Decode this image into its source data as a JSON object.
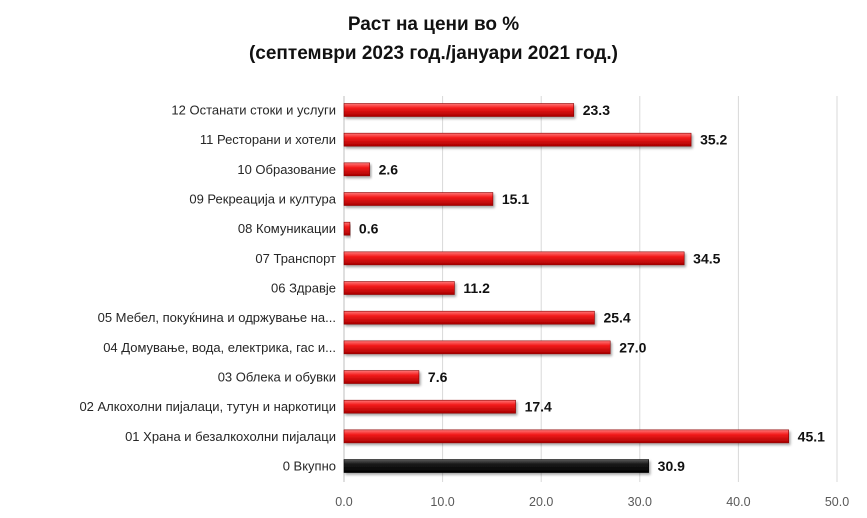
{
  "chart_data": {
    "type": "bar",
    "orientation": "horizontal",
    "title_lines": [
      "Раст на цени во %",
      "(септември 2023 год./јануари 2021 год.)"
    ],
    "categories": [
      "12 Останати стоки и услуги",
      "11 Ресторани и хотели",
      "10 Образование",
      "09 Рекреација и култура",
      "08 Комуникации",
      "07 Транспорт",
      "06 Здравје",
      "05 Мебел, покуќнина и одржување на...",
      "04 Домување, вода, електрика, гас и...",
      "03 Облека и обувки",
      "02 Алкохолни пијалаци, тутун и наркотици",
      "01 Храна и безалкохолни пијалаци",
      "0 Вкупно"
    ],
    "values": [
      23.3,
      35.2,
      2.6,
      15.1,
      0.6,
      34.5,
      11.2,
      25.4,
      27.0,
      7.6,
      17.4,
      45.1,
      30.9
    ],
    "value_labels": [
      "23.3",
      "35.2",
      "2.6",
      "15.1",
      "0.6",
      "34.5",
      "11.2",
      "25.4",
      "27.0",
      "7.6",
      "17.4",
      "45.1",
      "30.9"
    ],
    "bar_colors": [
      "#ee1c1c",
      "#ee1c1c",
      "#ee1c1c",
      "#ee1c1c",
      "#ee1c1c",
      "#ee1c1c",
      "#ee1c1c",
      "#ee1c1c",
      "#ee1c1c",
      "#ee1c1c",
      "#ee1c1c",
      "#ee1c1c",
      "#111111"
    ],
    "xlim": [
      0,
      50
    ],
    "xticks": [
      "0.0",
      "10.0",
      "20.0",
      "30.0",
      "40.0",
      "50.0"
    ],
    "grid": true,
    "legend": "none"
  }
}
